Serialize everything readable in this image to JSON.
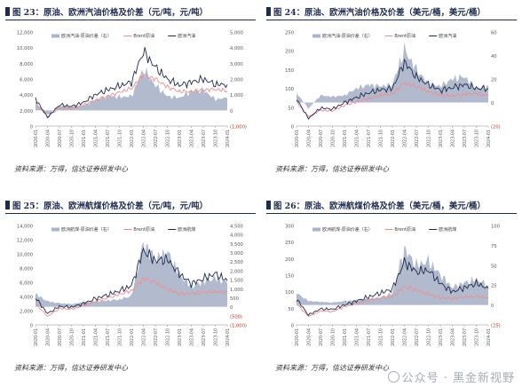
{
  "figures": [
    {
      "title": "图 23：原油、欧洲汽油价格及价差（元/吨，元/吨）",
      "source": "资料来源：万得，信达证券研发中心",
      "legend": [
        "欧洲汽油-原油价差（右）",
        "Brent原油",
        "欧洲汽油"
      ],
      "left_ticks": [
        "12,000",
        "10,000",
        "8,000",
        "6,000",
        "4,000",
        "2,000",
        "0"
      ],
      "right_ticks": [
        "5,000",
        "4,000",
        "3,000",
        "2,000",
        "1,000",
        "0",
        "(1,000)"
      ]
    },
    {
      "title": "图 24：原油、欧洲汽油价格及价差（美元/桶，美元/桶）",
      "source": "资料来源：万得，信达证券研发中心",
      "legend": [
        "欧洲汽油-原油价差（右）",
        "Brent原油",
        "欧洲汽油"
      ],
      "left_ticks": [
        "250",
        "200",
        "150",
        "100",
        "50",
        "0"
      ],
      "right_ticks": [
        "60",
        "40",
        "20",
        "0",
        "(20)"
      ]
    },
    {
      "title": "图 25：原油、欧洲航煤价格及价差（元/吨，元/吨）",
      "source": "资料来源：万得，信达证券研发中心",
      "legend": [
        "欧洲航煤-原油价差（右）",
        "Brent原油",
        "欧洲航煤"
      ],
      "left_ticks": [
        "14,000",
        "12,000",
        "10,000",
        "8,000",
        "6,000",
        "4,000",
        "2,000",
        "0"
      ],
      "right_ticks": [
        "4,500",
        "4,000",
        "3,500",
        "3,000",
        "2,500",
        "2,000",
        "1,500",
        "1,000",
        "500",
        "0",
        "(500)",
        "(1,000)"
      ]
    },
    {
      "title": "图 26：原油、欧洲航煤价格及价差（美元/桶，美元/桶）",
      "source": "资料来源：万得，信达证券研发中心",
      "legend": [
        "欧洲航煤-原油价差（右）",
        "Brent原油",
        "欧洲航煤"
      ],
      "left_ticks": [
        "300",
        "250",
        "200",
        "150",
        "100",
        "50",
        "0"
      ],
      "right_ticks": [
        "100",
        "75",
        "50",
        "25",
        "0",
        "(25)"
      ]
    }
  ],
  "x_ticks": [
    "2020-01",
    "2020-04",
    "2020-07",
    "2020-10",
    "2021-01",
    "2021-04",
    "2021-07",
    "2021-10",
    "2022-01",
    "2022-04",
    "2022-07",
    "2022-10",
    "2023-01",
    "2023-04",
    "2023-07",
    "2023-10",
    "2024-01"
  ],
  "watermark": "公众号 · 黑金新视野",
  "colors": {
    "spread": "#aab4c8",
    "brent": "#f08c8c",
    "product": "#1f2b4d",
    "title": "#1f2b4d"
  },
  "chart_data": [
    {
      "type": "line",
      "title": "图 23：原油、欧洲汽油价格及价差（元/吨，元/吨）",
      "categories": [
        "2020-01",
        "2020-04",
        "2020-07",
        "2020-10",
        "2021-01",
        "2021-04",
        "2021-07",
        "2021-10",
        "2022-01",
        "2022-04",
        "2022-07",
        "2022-10",
        "2023-01",
        "2023-04",
        "2023-07",
        "2023-10",
        "2024-01"
      ],
      "ylim": [
        0,
        12000
      ],
      "y2lim": [
        -1000,
        5000
      ],
      "series": [
        {
          "name": "欧洲汽油-原油价差（右）",
          "axis": "right",
          "type": "area",
          "values": [
            500,
            -300,
            300,
            250,
            300,
            650,
            900,
            850,
            900,
            2600,
            1600,
            900,
            800,
            1200,
            1300,
            700,
            800
          ]
        },
        {
          "name": "Brent原油",
          "axis": "left",
          "values": [
            3000,
            1200,
            2300,
            2200,
            2700,
            3300,
            3800,
            4300,
            4800,
            6500,
            6000,
            5000,
            4400,
            4400,
            4600,
            4700,
            4500
          ]
        },
        {
          "name": "欧洲汽油",
          "axis": "left",
          "values": [
            3500,
            1100,
            2700,
            2500,
            3000,
            4000,
            4600,
            5100,
            5600,
            9500,
            7500,
            6000,
            5200,
            5600,
            6000,
            5300,
            5300
          ]
        }
      ]
    },
    {
      "type": "line",
      "title": "图 24：原油、欧洲汽油价格及价差（美元/桶，美元/桶）",
      "categories": [
        "2020-01",
        "2020-04",
        "2020-07",
        "2020-10",
        "2021-01",
        "2021-04",
        "2021-07",
        "2021-10",
        "2022-01",
        "2022-04",
        "2022-07",
        "2022-10",
        "2023-01",
        "2023-04",
        "2023-07",
        "2023-10",
        "2024-01"
      ],
      "ylim": [
        0,
        250
      ],
      "y2lim": [
        -20,
        60
      ],
      "series": [
        {
          "name": "欧洲汽油-原油价差（右）",
          "axis": "right",
          "type": "area",
          "values": [
            8,
            -5,
            6,
            5,
            6,
            12,
            15,
            14,
            15,
            45,
            28,
            16,
            14,
            20,
            22,
            12,
            14
          ]
        },
        {
          "name": "Brent原油",
          "axis": "left",
          "values": [
            64,
            25,
            42,
            40,
            55,
            64,
            73,
            82,
            85,
            115,
            105,
            92,
            82,
            80,
            84,
            86,
            80
          ]
        },
        {
          "name": "欧洲汽油",
          "axis": "left",
          "values": [
            72,
            20,
            48,
            45,
            62,
            76,
            88,
            96,
            100,
            170,
            130,
            110,
            95,
            102,
            110,
            100,
            100
          ]
        }
      ]
    },
    {
      "type": "line",
      "title": "图 25：原油、欧洲航煤价格及价差（元/吨，元/吨）",
      "categories": [
        "2020-01",
        "2020-04",
        "2020-07",
        "2020-10",
        "2021-01",
        "2021-04",
        "2021-07",
        "2021-10",
        "2022-01",
        "2022-04",
        "2022-07",
        "2022-10",
        "2023-01",
        "2023-04",
        "2023-07",
        "2023-10",
        "2024-01"
      ],
      "ylim": [
        0,
        14000
      ],
      "y2lim": [
        -1000,
        4500
      ],
      "series": [
        {
          "name": "欧洲航煤-原油价差（右）",
          "axis": "right",
          "type": "area",
          "values": [
            700,
            300,
            200,
            150,
            250,
            300,
            350,
            400,
            600,
            3500,
            2600,
            3000,
            1800,
            1100,
            1400,
            1600,
            1300
          ]
        },
        {
          "name": "Brent原油",
          "axis": "left",
          "values": [
            3000,
            1200,
            2300,
            2200,
            2700,
            3300,
            3800,
            4300,
            4800,
            6500,
            6000,
            5000,
            4400,
            4400,
            4600,
            4700,
            4500
          ]
        },
        {
          "name": "欧洲航煤",
          "axis": "left",
          "values": [
            3800,
            1600,
            2600,
            2500,
            3000,
            3700,
            4200,
            4800,
            5500,
            10500,
            9000,
            9200,
            7200,
            5800,
            6500,
            7200,
            6200
          ]
        }
      ]
    },
    {
      "type": "line",
      "title": "图 26：原油、欧洲航煤价格及价差（美元/桶，美元/桶）",
      "categories": [
        "2020-01",
        "2020-04",
        "2020-07",
        "2020-10",
        "2021-01",
        "2021-04",
        "2021-07",
        "2021-10",
        "2022-01",
        "2022-04",
        "2022-07",
        "2022-10",
        "2023-01",
        "2023-04",
        "2023-07",
        "2023-10",
        "2024-01"
      ],
      "ylim": [
        0,
        300
      ],
      "y2lim": [
        -25,
        100
      ],
      "series": [
        {
          "name": "欧洲航煤-原油价差（右）",
          "axis": "right",
          "type": "area",
          "values": [
            15,
            5,
            4,
            3,
            5,
            6,
            8,
            9,
            15,
            70,
            50,
            55,
            38,
            22,
            28,
            32,
            25
          ]
        },
        {
          "name": "Brent原油",
          "axis": "left",
          "values": [
            64,
            25,
            42,
            40,
            55,
            64,
            73,
            82,
            85,
            115,
            105,
            92,
            82,
            80,
            84,
            86,
            80
          ]
        },
        {
          "name": "欧洲航煤",
          "axis": "left",
          "values": [
            78,
            30,
            48,
            47,
            60,
            72,
            84,
            96,
            108,
            190,
            160,
            165,
            125,
            100,
            112,
            125,
            110
          ]
        }
      ]
    }
  ]
}
